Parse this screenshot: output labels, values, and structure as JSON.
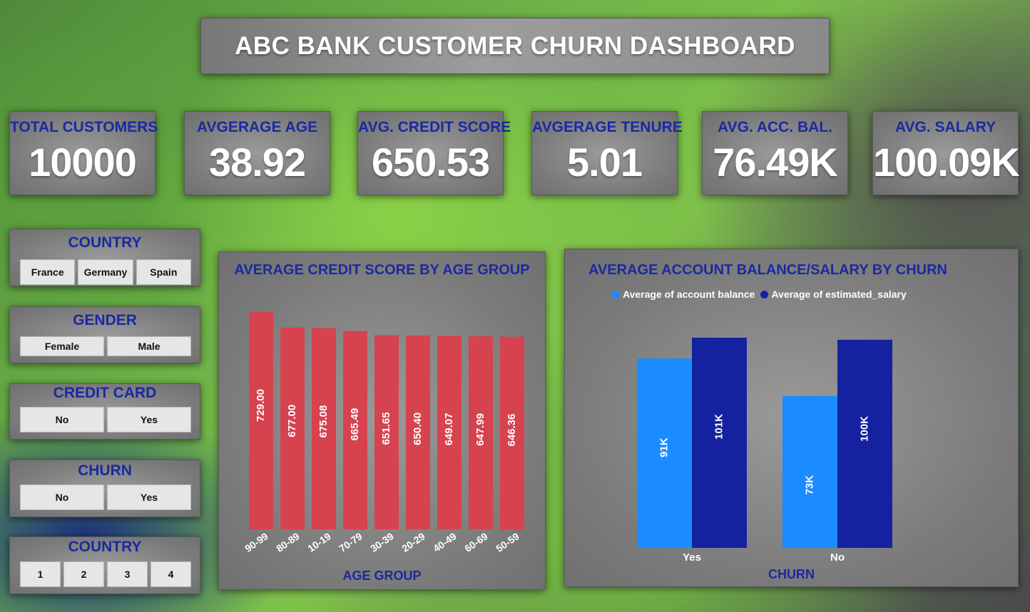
{
  "title": "ABC BANK CUSTOMER CHURN DASHBOARD",
  "kpis": [
    {
      "label": "TOTAL CUSTOMERS",
      "value": "10000"
    },
    {
      "label": "AVGERAGE AGE",
      "value": "38.92"
    },
    {
      "label": "AVG. CREDIT SCORE",
      "value": "650.53"
    },
    {
      "label": "AVGERAGE TENURE",
      "value": "5.01"
    },
    {
      "label": "AVG. ACC. BAL.",
      "value": "76.49K"
    },
    {
      "label": "AVG. SALARY",
      "value": "100.09K"
    }
  ],
  "slicers": [
    {
      "title": "COUNTRY",
      "options": [
        "France",
        "Germany",
        "Spain"
      ]
    },
    {
      "title": "GENDER",
      "options": [
        "Female",
        "Male"
      ]
    },
    {
      "title": "CREDIT CARD",
      "options": [
        "No",
        "Yes"
      ]
    },
    {
      "title": "CHURN",
      "options": [
        "No",
        "Yes"
      ]
    },
    {
      "title": "COUNTRY",
      "options": [
        "1",
        "2",
        "3",
        "4"
      ]
    }
  ],
  "chart_data": [
    {
      "type": "bar",
      "title": "AVERAGE CREDIT SCORE BY AGE GROUP",
      "xlabel": "AGE GROUP",
      "ylabel": "",
      "categories": [
        "90-99",
        "80-89",
        "10-19",
        "70-79",
        "30-39",
        "20-29",
        "40-49",
        "60-69",
        "50-59"
      ],
      "values": [
        729.0,
        677.0,
        675.08,
        665.49,
        651.65,
        650.4,
        649.07,
        647.99,
        646.36
      ],
      "labels": [
        "729.00",
        "677.00",
        "675.08",
        "665.49",
        "651.65",
        "650.40",
        "649.07",
        "647.99",
        "646.36"
      ],
      "color": "#d6434f",
      "ylim": [
        0,
        729
      ]
    },
    {
      "type": "bar",
      "title": "AVERAGE ACCOUNT BALANCE/SALARY BY CHURN",
      "xlabel": "CHURN",
      "ylabel": "",
      "categories": [
        "Yes",
        "No"
      ],
      "series": [
        {
          "name": "Average of account balance",
          "values": [
            91,
            73
          ],
          "labels": [
            "91K",
            "73K"
          ],
          "color": "#1a8cff"
        },
        {
          "name": "Average of estimated_salary",
          "values": [
            101,
            100
          ],
          "labels": [
            "101K",
            "100K"
          ],
          "color": "#1422a0"
        }
      ],
      "legend": "top-left",
      "ylim": [
        0,
        101
      ]
    }
  ]
}
